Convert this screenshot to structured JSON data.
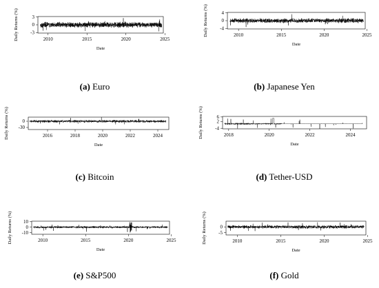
{
  "figure": {
    "chart_data": [
      {
        "id": "a",
        "type": "line",
        "panel_tag": "(a)",
        "panel_name": "Euro",
        "ylabel": "Daily Returns (%)",
        "xlabel": "Date",
        "x_ticks": [
          "2010",
          "2015",
          "2020",
          "2025"
        ],
        "x_tick_values": [
          2010,
          2015,
          2020,
          2025
        ],
        "y_ticks": [
          "-3",
          "0",
          "3"
        ],
        "y_tick_values": [
          -3,
          0,
          3
        ],
        "xlim": [
          2008.7,
          2024.8
        ],
        "ylim": [
          -3.2,
          3.2
        ],
        "series": [
          {
            "x_range": [
              2009.0,
              2024.6
            ],
            "amplitude": 1.2,
            "spikes": 2.6
          }
        ]
      },
      {
        "id": "b",
        "type": "line",
        "panel_tag": "(b)",
        "panel_name": "Japanese Yen",
        "ylabel": "Daily Returns (%)",
        "xlabel": "Date",
        "x_ticks": [
          "2010",
          "2015",
          "2020",
          "2025"
        ],
        "x_tick_values": [
          2010,
          2015,
          2020,
          2025
        ],
        "y_ticks": [
          "-4",
          "0",
          "4"
        ],
        "y_tick_values": [
          -4,
          0,
          4
        ],
        "xlim": [
          2008.7,
          2024.8
        ],
        "ylim": [
          -4.2,
          4.2
        ],
        "series": [
          {
            "x_range": [
              2009.0,
              2024.6
            ],
            "amplitude": 1.3,
            "spikes": 3.4
          }
        ]
      },
      {
        "id": "c",
        "type": "line",
        "panel_tag": "(c)",
        "panel_name": "Bitcoin",
        "ylabel": "Daily Returns (%)",
        "xlabel": "Date",
        "x_ticks": [
          "2016",
          "2018",
          "2020",
          "2022",
          "2024"
        ],
        "x_tick_values": [
          2016,
          2018,
          2020,
          2022,
          2024
        ],
        "y_ticks": [
          "-30",
          "0"
        ],
        "y_tick_values": [
          -30,
          0
        ],
        "xlim": [
          2014.6,
          2024.8
        ],
        "ylim": [
          -40,
          20
        ],
        "series": [
          {
            "x_range": [
              2014.7,
              2024.6
            ],
            "amplitude": 7,
            "spikes": 20
          }
        ]
      },
      {
        "id": "d",
        "type": "line",
        "panel_tag": "(d)",
        "panel_name": "Tether-USD",
        "ylabel": "Daily Returns (%)",
        "xlabel": "Date",
        "x_ticks": [
          "2018",
          "2020",
          "2022",
          "2024"
        ],
        "x_tick_values": [
          2018,
          2020,
          2022,
          2024
        ],
        "y_ticks": [
          "-4",
          "2",
          "6"
        ],
        "y_tick_values": [
          -4,
          2,
          6
        ],
        "xlim": [
          2017.7,
          2024.8
        ],
        "ylim": [
          -4.5,
          6.5
        ],
        "series": [
          {
            "x_range": [
              2017.8,
              2024.6
            ],
            "amplitude": 0.9,
            "spikes": 5
          }
        ]
      },
      {
        "id": "e",
        "type": "line",
        "panel_tag": "(e)",
        "panel_name": "S&P500",
        "ylabel": "Daily Returns (%)",
        "xlabel": "Date",
        "x_ticks": [
          "2010",
          "2015",
          "2020",
          "2025"
        ],
        "x_tick_values": [
          2010,
          2015,
          2020,
          2025
        ],
        "y_ticks": [
          "-10",
          "0",
          "10"
        ],
        "y_tick_values": [
          -10,
          0,
          10
        ],
        "xlim": [
          2008.7,
          2024.8
        ],
        "ylim": [
          -13,
          11
        ],
        "series": [
          {
            "x_range": [
              2008.9,
              2024.6
            ],
            "amplitude": 2.2,
            "spikes": 9
          }
        ]
      },
      {
        "id": "f",
        "type": "line",
        "panel_tag": "(f)",
        "panel_name": "Gold",
        "ylabel": "Daily Returns (%)",
        "xlabel": "Date",
        "x_ticks": [
          "2010",
          "2015",
          "2020",
          "2025"
        ],
        "x_tick_values": [
          2010,
          2015,
          2020,
          2025
        ],
        "y_ticks": [
          "-5",
          "0"
        ],
        "y_tick_values": [
          -5,
          0
        ],
        "xlim": [
          2008.7,
          2024.8
        ],
        "ylim": [
          -7,
          5
        ],
        "series": [
          {
            "x_range": [
              2008.9,
              2024.6
            ],
            "amplitude": 1.6,
            "spikes": 5
          }
        ]
      }
    ]
  }
}
